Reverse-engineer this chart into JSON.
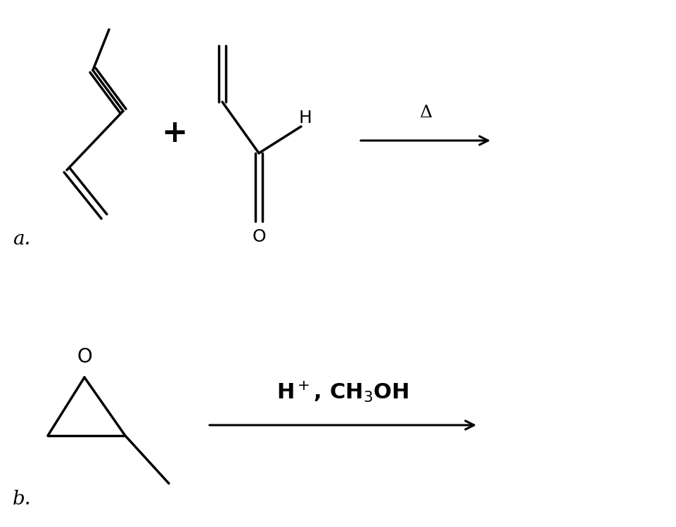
{
  "bg_color": "#ffffff",
  "line_color": "#000000",
  "line_width": 2.5,
  "label_a": "a.",
  "label_b": "b.",
  "plus_sign": "+",
  "delta_label": "Δ",
  "H_label": "H",
  "O_label": "O",
  "O_epoxide": "O"
}
